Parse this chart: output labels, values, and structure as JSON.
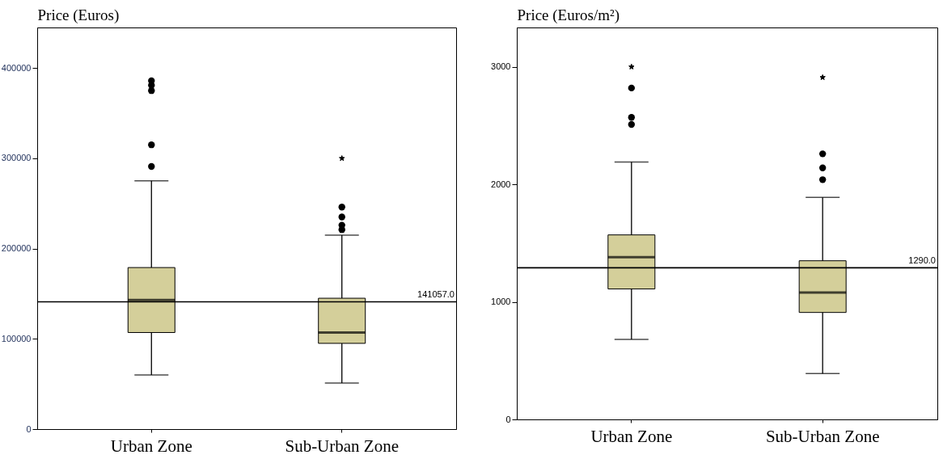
{
  "chart_data": [
    {
      "type": "box",
      "ylabel": "Price (Euros)",
      "categories": [
        "Urban Zone",
        "Sub-Urban Zone"
      ],
      "ylim": [
        0,
        445000
      ],
      "yticks": [
        0,
        100000,
        200000,
        300000,
        400000
      ],
      "grid": false,
      "series": [
        {
          "type": "box",
          "color": "#d4cf9a",
          "boxes": [
            {
              "low": 60000,
              "q1": 107000,
              "median": 143000,
              "q3": 179000,
              "high": 275000,
              "outliers": [
                386000,
                381000,
                375000,
                315000,
                291000
              ]
            },
            {
              "low": 51000,
              "q1": 95000,
              "median": 107000,
              "q3": 145000,
              "high": 215000,
              "outliers": [
                246000,
                235000,
                226000,
                221000
              ]
            }
          ]
        },
        {
          "type": "scatter",
          "marker": "star",
          "color": "#000000",
          "x": [
            "Sub-Urban Zone"
          ],
          "values": [
            300000
          ]
        }
      ],
      "ref_lines": [
        {
          "axis": "y",
          "value": 141057,
          "label": "141057.0",
          "color": "#000000"
        }
      ]
    },
    {
      "type": "box",
      "ylabel": "Price (Euros/m²)",
      "categories": [
        "Urban Zone",
        "Sub-Urban Zone"
      ],
      "ylim": [
        0,
        3335
      ],
      "yticks": [
        0,
        1000,
        2000,
        3000
      ],
      "grid": false,
      "series": [
        {
          "type": "box",
          "color": "#d4cf9a",
          "boxes": [
            {
              "low": 680,
              "q1": 1110,
              "median": 1380,
              "q3": 1570,
              "high": 2190,
              "outliers": [
                2820,
                2570,
                2510
              ]
            },
            {
              "low": 390,
              "q1": 910,
              "median": 1080,
              "q3": 1350,
              "high": 1890,
              "outliers": [
                2260,
                2140,
                2040
              ]
            }
          ]
        },
        {
          "type": "scatter",
          "marker": "star",
          "color": "#000000",
          "x": [
            "Urban Zone",
            "Sub-Urban Zone"
          ],
          "values": [
            3000,
            2910
          ]
        }
      ],
      "ref_lines": [
        {
          "axis": "y",
          "value": 1290,
          "label": "1290.0",
          "color": "#000000"
        }
      ]
    }
  ]
}
